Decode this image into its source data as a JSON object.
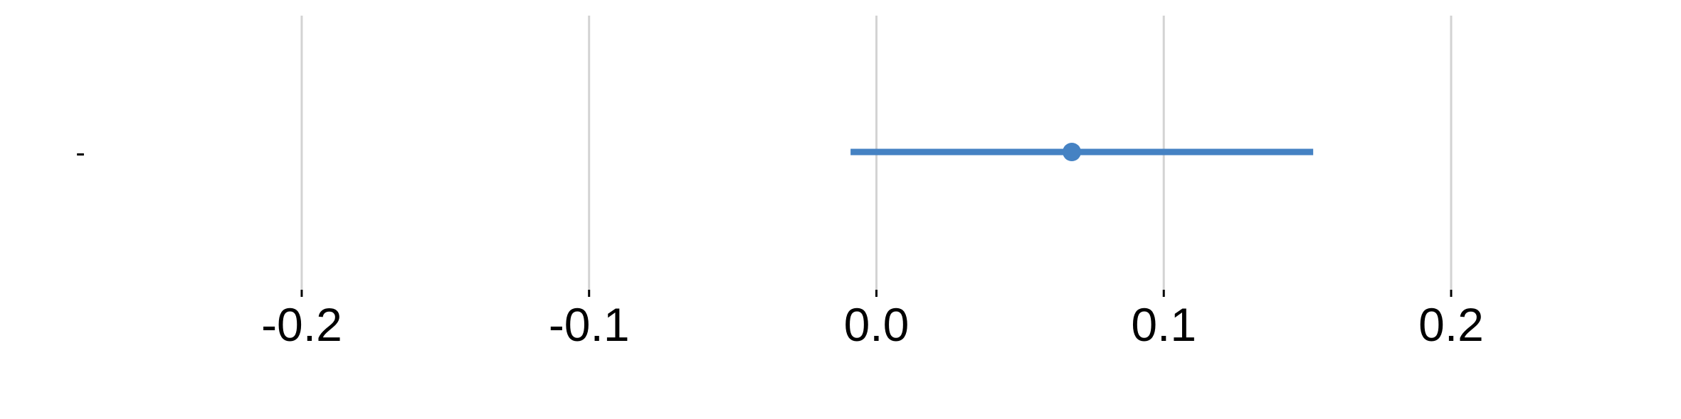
{
  "chart_data": {
    "type": "scatter",
    "orientation": "horizontal",
    "categories": [
      "-"
    ],
    "series": [
      {
        "estimate": 0.068,
        "ci_low": -0.009,
        "ci_high": 0.152
      }
    ],
    "x_ticks": [
      -0.2,
      -0.1,
      0.0,
      0.1,
      0.2
    ],
    "x_tick_labels": [
      "-0.2",
      "-0.1",
      "0.0",
      "0.1",
      "0.2"
    ],
    "xlim": [
      -0.305,
      0.28
    ],
    "grid": true,
    "title": "",
    "xlabel": "",
    "ylabel": ""
  },
  "colors": {
    "series": "#4582c3",
    "grid": "#d3d3d3",
    "tick": "#000000"
  }
}
